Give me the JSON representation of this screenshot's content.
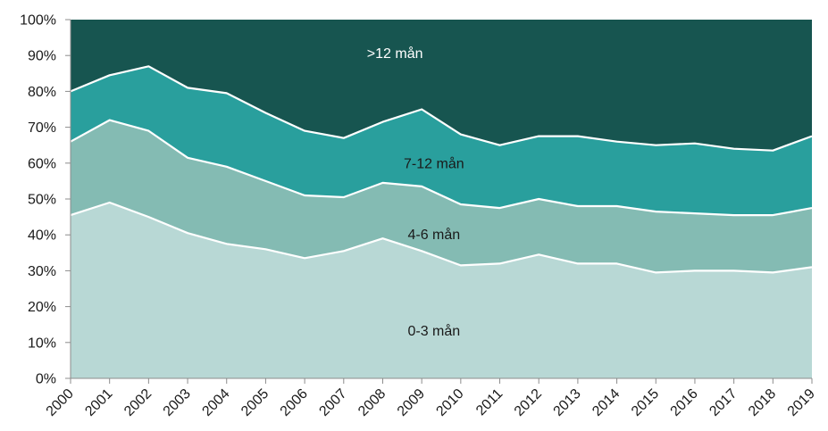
{
  "chart_data": {
    "type": "area",
    "stacked": true,
    "normalized": true,
    "categories": [
      "2000",
      "2001",
      "2002",
      "2003",
      "2004",
      "2005",
      "2006",
      "2007",
      "2008",
      "2009",
      "2010",
      "2011",
      "2012",
      "2013",
      "2014",
      "2015",
      "2016",
      "2017",
      "2018",
      "2019"
    ],
    "ylim": [
      0,
      100
    ],
    "yticks": [
      "0%",
      "10%",
      "20%",
      "30%",
      "40%",
      "50%",
      "60%",
      "70%",
      "80%",
      "90%",
      "100%"
    ],
    "series": [
      {
        "name": "0-3 mån",
        "color": "#b8d8d5",
        "values": [
          45.5,
          49,
          45,
          40.5,
          37.5,
          36,
          33.5,
          35.5,
          39,
          35.5,
          31.5,
          32,
          34.5,
          32,
          32,
          29.5,
          30,
          30,
          29.5,
          31
        ]
      },
      {
        "name": "4-6 mån",
        "color": "#84bbb3",
        "values": [
          20.5,
          23,
          24,
          21,
          21.5,
          19,
          17.5,
          15,
          15.5,
          18,
          17,
          15.5,
          15.5,
          16,
          16,
          17,
          16,
          15.5,
          16,
          16.5
        ]
      },
      {
        "name": "7-12 mån",
        "color": "#299f9d",
        "values": [
          14,
          12.5,
          18,
          19.5,
          20.5,
          19,
          18,
          16.5,
          17,
          21.5,
          19.5,
          17.5,
          17.5,
          19.5,
          18,
          18.5,
          19.5,
          18.5,
          18,
          20
        ]
      },
      {
        "name": ">12 mån",
        "color": "#175550",
        "values": [
          20,
          15.5,
          13,
          19,
          20.5,
          26,
          31,
          33,
          28.5,
          25,
          32,
          35,
          32.5,
          32.5,
          34,
          35,
          34.5,
          36,
          36.5,
          32.5
        ]
      }
    ]
  }
}
